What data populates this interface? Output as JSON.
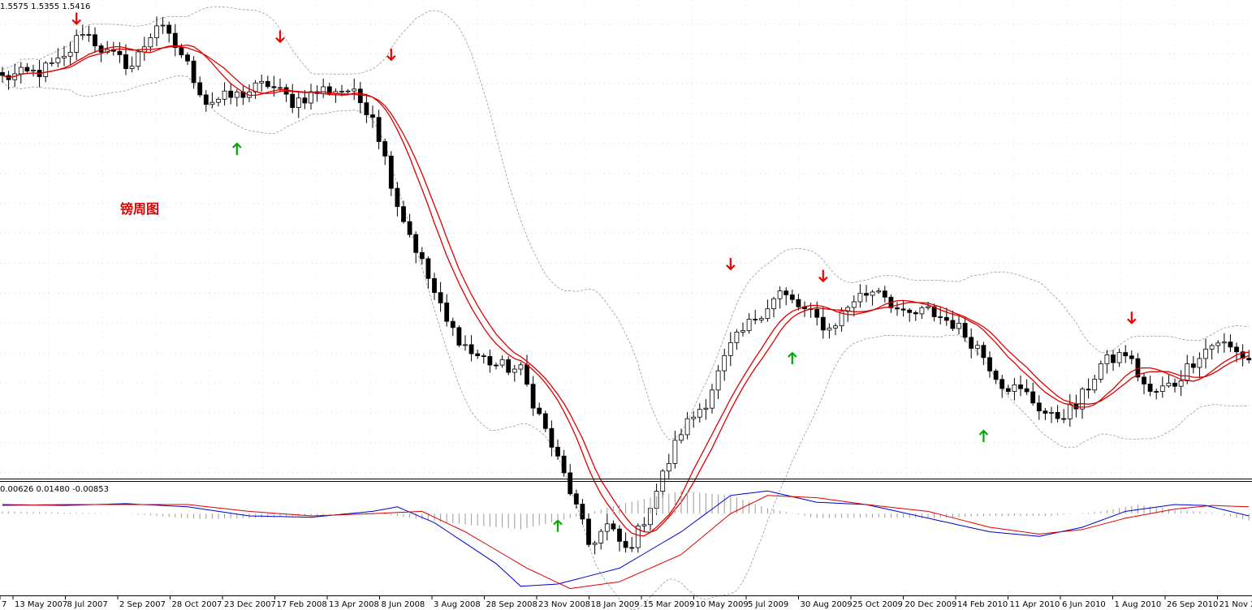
{
  "chart_data": [
    {
      "type": "candlestick",
      "header_values": "1.5575 1.5355 1.5416",
      "annotation": "镑周图",
      "indicators": [
        "moving averages",
        "Bollinger bands"
      ],
      "x_tick_labels": [
        "7",
        "13 May 2007",
        "8 Jul 2007",
        "2 Sep 2007",
        "28 Oct 2007",
        "23 Dec 2007",
        "17 Feb 2008",
        "13 Apr 2008",
        "8 Jun 2008",
        "3 Aug 2008",
        "28 Sep 2008",
        "23 Nov 2008",
        "18 Jan 2009",
        "15 Mar 2009",
        "10 May 2009",
        "5 Jul 2009",
        "30 Aug 2009",
        "25 Oct 2009",
        "20 Dec 2009",
        "14 Feb 2010",
        "11 Apr 2010",
        "6 Jun 2010",
        "1 Aug 2010",
        "26 Sep 2010",
        "21 Nov 2010"
      ],
      "close_path": [
        [
          0,
          2.01
        ],
        [
          6,
          2.02
        ],
        [
          10,
          2.04
        ],
        [
          13,
          2.09
        ],
        [
          17,
          2.05
        ],
        [
          21,
          2.03
        ],
        [
          25,
          2.1
        ],
        [
          29,
          2.05
        ],
        [
          33,
          1.97
        ],
        [
          38,
          1.98
        ],
        [
          43,
          2.0
        ],
        [
          47,
          1.97
        ],
        [
          52,
          1.99
        ],
        [
          56,
          1.99
        ],
        [
          60,
          1.95
        ],
        [
          64,
          1.8
        ],
        [
          68,
          1.7
        ],
        [
          72,
          1.6
        ],
        [
          76,
          1.55
        ],
        [
          80,
          1.53
        ],
        [
          84,
          1.52
        ],
        [
          88,
          1.42
        ],
        [
          92,
          1.32
        ],
        [
          95,
          1.23
        ],
        [
          98,
          1.26
        ],
        [
          101,
          1.22
        ],
        [
          103,
          1.25
        ],
        [
          106,
          1.32
        ],
        [
          110,
          1.42
        ],
        [
          114,
          1.47
        ],
        [
          118,
          1.56
        ],
        [
          122,
          1.61
        ],
        [
          126,
          1.65
        ],
        [
          130,
          1.62
        ],
        [
          134,
          1.59
        ],
        [
          138,
          1.64
        ],
        [
          142,
          1.66
        ],
        [
          146,
          1.61
        ],
        [
          150,
          1.62
        ],
        [
          154,
          1.6
        ],
        [
          158,
          1.56
        ],
        [
          162,
          1.5
        ],
        [
          166,
          1.48
        ],
        [
          170,
          1.44
        ],
        [
          174,
          1.46
        ],
        [
          178,
          1.53
        ],
        [
          182,
          1.55
        ],
        [
          186,
          1.48
        ],
        [
          190,
          1.5
        ],
        [
          194,
          1.55
        ],
        [
          197,
          1.57
        ],
        [
          200,
          1.55
        ],
        [
          202,
          1.54
        ]
      ],
      "signal_arrows_down": [
        [
          12,
          2.1
        ],
        [
          28,
          2.15
        ],
        [
          45,
          2.07
        ],
        [
          63,
          2.04
        ],
        [
          118,
          1.69
        ],
        [
          133,
          1.67
        ],
        [
          183,
          1.6
        ]
      ],
      "signal_arrows_up": [
        [
          38,
          1.9
        ],
        [
          90,
          1.27
        ],
        [
          128,
          1.55
        ],
        [
          159,
          1.42
        ]
      ]
    },
    {
      "type": "line",
      "header_values": "0.00626 0.01480 -0.00853",
      "series": [
        {
          "color": "#0000cc",
          "points": [
            [
              0,
              0.02
            ],
            [
              10,
              0.018
            ],
            [
              20,
              0.022
            ],
            [
              30,
              0.015
            ],
            [
              40,
              -0.005
            ],
            [
              50,
              -0.008
            ],
            [
              60,
              0.005
            ],
            [
              64,
              0.015
            ],
            [
              70,
              -0.02
            ],
            [
              80,
              -0.11
            ],
            [
              84,
              -0.16
            ],
            [
              90,
              -0.155
            ],
            [
              100,
              -0.12
            ],
            [
              110,
              -0.04
            ],
            [
              118,
              0.04
            ],
            [
              124,
              0.05
            ],
            [
              132,
              0.025
            ],
            [
              140,
              0.02
            ],
            [
              150,
              -0.01
            ],
            [
              160,
              -0.04
            ],
            [
              168,
              -0.05
            ],
            [
              175,
              -0.03
            ],
            [
              182,
              0.005
            ],
            [
              190,
              0.02
            ],
            [
              195,
              0.018
            ],
            [
              202,
              -0.005
            ]
          ]
        },
        {
          "color": "#dd0000",
          "points": [
            [
              0,
              0.018
            ],
            [
              10,
              0.02
            ],
            [
              20,
              0.02
            ],
            [
              30,
              0.02
            ],
            [
              40,
              0.005
            ],
            [
              50,
              -0.005
            ],
            [
              60,
              0.0
            ],
            [
              68,
              0.005
            ],
            [
              75,
              -0.04
            ],
            [
              85,
              -0.12
            ],
            [
              92,
              -0.165
            ],
            [
              100,
              -0.15
            ],
            [
              110,
              -0.09
            ],
            [
              118,
              0.0
            ],
            [
              124,
              0.04
            ],
            [
              132,
              0.035
            ],
            [
              140,
              0.02
            ],
            [
              150,
              0.005
            ],
            [
              160,
              -0.03
            ],
            [
              168,
              -0.045
            ],
            [
              175,
              -0.035
            ],
            [
              182,
              -0.01
            ],
            [
              190,
              0.01
            ],
            [
              196,
              0.018
            ],
            [
              202,
              0.015
            ]
          ]
        }
      ],
      "histogram": [
        [
          0,
          0.005
        ],
        [
          20,
          0.0
        ],
        [
          32,
          -0.012
        ],
        [
          40,
          -0.01
        ],
        [
          60,
          0.002
        ],
        [
          72,
          -0.02
        ],
        [
          84,
          -0.035
        ],
        [
          92,
          -0.01
        ],
        [
          100,
          0.02
        ],
        [
          110,
          0.05
        ],
        [
          118,
          0.04
        ],
        [
          124,
          0.012
        ],
        [
          132,
          -0.01
        ],
        [
          140,
          -0.008
        ],
        [
          150,
          -0.01
        ],
        [
          160,
          -0.005
        ],
        [
          170,
          -0.005
        ],
        [
          178,
          0.005
        ],
        [
          184,
          0.02
        ],
        [
          190,
          0.008
        ],
        [
          196,
          0.002
        ],
        [
          202,
          -0.015
        ]
      ]
    }
  ],
  "colors": {
    "bull_candle": "#ffffff",
    "bear_candle": "#000000",
    "moving_average": "#dd0000",
    "bollinger": "#9a9a9a",
    "arrow_down": "#ee0000",
    "arrow_up": "#00aa00"
  }
}
